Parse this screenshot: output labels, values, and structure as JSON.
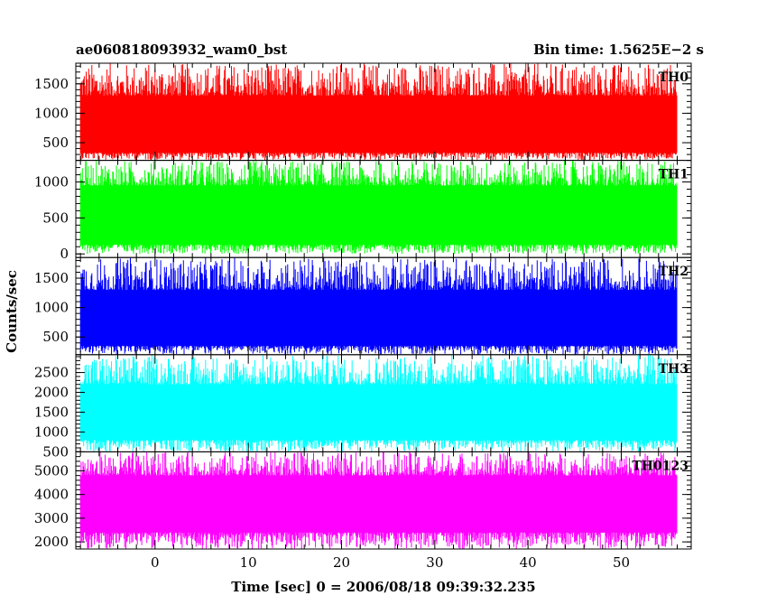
{
  "title_left": "ae060818093932_wam0_bst",
  "title_right": "Bin time: 1.5625E−2 s",
  "chart_data": {
    "type": "line",
    "xlabel": "Time [sec] 0 = 2006/08/18 09:39:32.235",
    "ylabel": "Counts/sec",
    "xlim": [
      -8.5,
      57.5
    ],
    "data_x_range": [
      -8.0,
      56.0
    ],
    "bin_time": 0.015625,
    "x_ticks": [
      0,
      10,
      20,
      30,
      40,
      50
    ],
    "panels": [
      {
        "name": "TH0",
        "color": "#ff0000",
        "ylim": [
          200,
          1850
        ],
        "yticks": [
          500,
          1000,
          1500
        ],
        "ytick_labels": [
          "500",
          "1000",
          "1500"
        ],
        "band_low": 330,
        "band_high": 1300,
        "peak_min": 200,
        "peak_max": 1850
      },
      {
        "name": "TH1",
        "color": "#00ff00",
        "ylim": [
          -50,
          1300
        ],
        "yticks": [
          0,
          500,
          1000
        ],
        "ytick_labels": [
          "0",
          "500",
          "1000"
        ],
        "band_low": 130,
        "band_high": 950,
        "peak_min": 0,
        "peak_max": 1300
      },
      {
        "name": "TH2",
        "color": "#0000ff",
        "ylim": [
          200,
          1850
        ],
        "yticks": [
          500,
          1000,
          1500
        ],
        "ytick_labels": [
          "500",
          "1000",
          "1500"
        ],
        "band_low": 350,
        "band_high": 1300,
        "peak_min": 200,
        "peak_max": 1850
      },
      {
        "name": "TH3",
        "color": "#00ffff",
        "ylim": [
          500,
          2950
        ],
        "yticks": [
          500,
          1000,
          1500,
          2000,
          2500
        ],
        "ytick_labels": [
          "500",
          "1000",
          "1500",
          "2000",
          "2500"
        ],
        "band_low": 800,
        "band_high": 2200,
        "peak_min": 500,
        "peak_max": 2950
      },
      {
        "name": "TH0123",
        "color": "#ff00ff",
        "ylim": [
          1700,
          5800
        ],
        "yticks": [
          2000,
          3000,
          4000,
          5000
        ],
        "ytick_labels": [
          "2000",
          "3000",
          "4000",
          "5000"
        ],
        "band_low": 2400,
        "band_high": 4800,
        "peak_min": 1700,
        "peak_max": 5800
      }
    ]
  }
}
